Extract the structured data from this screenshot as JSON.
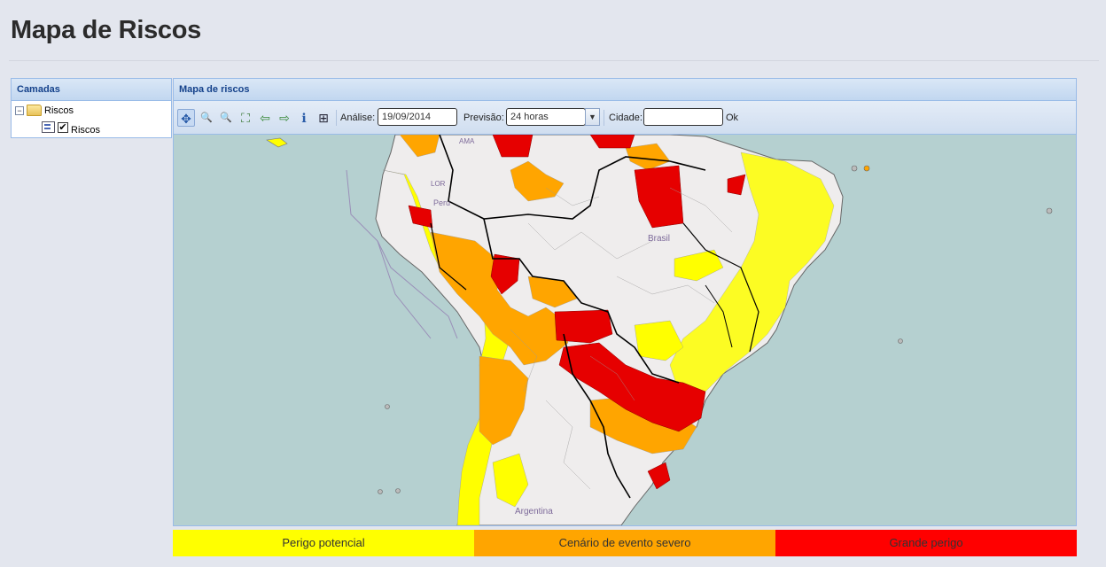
{
  "page": {
    "title": "Mapa de Riscos"
  },
  "layers_panel": {
    "header": "Camadas",
    "tree": {
      "folder_label": "Riscos",
      "layer_label": "Riscos",
      "layer_checked": true,
      "expander": "−",
      "check_mark": "✔"
    }
  },
  "map_panel": {
    "header": "Mapa de riscos",
    "toolbar": {
      "tools": [
        {
          "name": "pan-tool",
          "glyph": "✥"
        },
        {
          "name": "zoom-in-tool",
          "glyph": "🔍"
        },
        {
          "name": "zoom-out-tool",
          "glyph": "🔍"
        },
        {
          "name": "zoom-extent-tool",
          "glyph": "⛶"
        },
        {
          "name": "back-tool",
          "glyph": "⇦"
        },
        {
          "name": "forward-tool",
          "glyph": "⇨"
        },
        {
          "name": "info-tool",
          "glyph": "ℹ"
        },
        {
          "name": "grid-tool",
          "glyph": "⊞"
        }
      ],
      "analysis_label": "Análise:",
      "analysis_value": "19/09/2014",
      "forecast_label": "Previsão:",
      "forecast_value": "24 horas",
      "city_label": "Cidade:",
      "city_value": "",
      "ok_label": "Ok"
    },
    "map": {
      "labels": [
        "Brasil",
        "Peru",
        "Argentina",
        "LOR",
        "AMA"
      ],
      "colors": {
        "ocean": "#b5d0d0",
        "land": "#efeded",
        "yellow": "#ffff00",
        "orange": "#ffa500",
        "red": "#e00000"
      }
    }
  },
  "legend": {
    "items": [
      {
        "label": "Perigo potencial",
        "color": "#ffff00",
        "text_color": "#333333"
      },
      {
        "label": "Cenário de evento severo",
        "color": "#ffa500",
        "text_color": "#333333"
      },
      {
        "label": "Grande perigo",
        "color": "#ff0000",
        "text_color": "#333333"
      }
    ]
  }
}
